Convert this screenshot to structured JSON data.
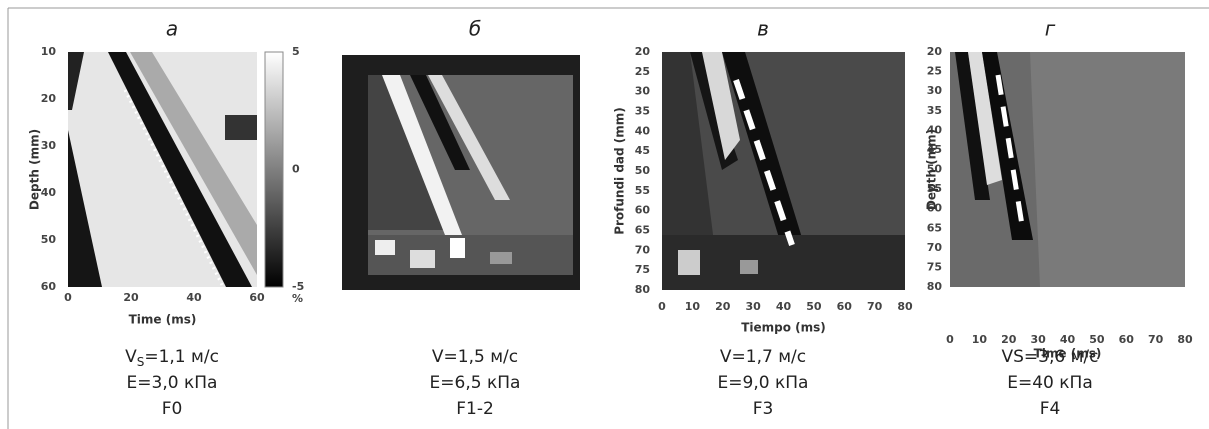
{
  "panels": [
    {
      "letter": "а",
      "ylabel": "Depth (mm)",
      "xlabel": "Time (ms)",
      "yticks": [
        "10",
        "20",
        "30",
        "40",
        "50",
        "60"
      ],
      "xticks": [
        "0",
        "20",
        "40",
        "60"
      ],
      "colorbar": [
        "5",
        "0",
        "-5",
        "%"
      ],
      "caption": [
        {
          "main": "V",
          "sub": "S",
          "rest": "=1,1 м/с"
        },
        "E=3,0 кПа",
        "F0"
      ]
    },
    {
      "letter": "б",
      "caption": [
        "V=1,5 м/с",
        "E=6,5 кПа",
        "F1-2"
      ]
    },
    {
      "letter": "в",
      "ylabel": "Profundi dad (mm)",
      "xlabel": "Tiempo (ms)",
      "yticks": [
        "20",
        "25",
        "30",
        "35",
        "40",
        "45",
        "50",
        "55",
        "60",
        "65",
        "70",
        "75",
        "80"
      ],
      "xticks": [
        "0",
        "10",
        "20",
        "30",
        "40",
        "50",
        "60",
        "70",
        "80"
      ],
      "caption": [
        "V=1,7 м/с",
        "E=9,0 кПа",
        "F3"
      ]
    },
    {
      "letter": "г",
      "ylabel": "Depth (mm)",
      "xlabel": "Time (ms)",
      "yticks": [
        "20",
        "25",
        "30",
        "35",
        "40",
        "45",
        "50",
        "55",
        "60",
        "65",
        "70",
        "75",
        "80"
      ],
      "xticks": [
        "0",
        "10",
        "20",
        "30",
        "40",
        "50",
        "60",
        "70",
        "80"
      ],
      "caption": [
        "VS=3,6 м/с",
        "E=40 кПа",
        "F4"
      ]
    }
  ]
}
